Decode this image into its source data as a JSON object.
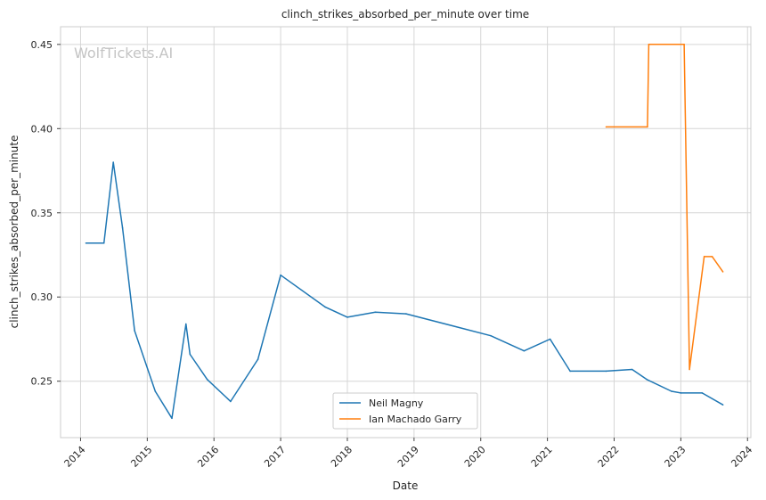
{
  "chart_data": {
    "type": "line",
    "title": "clinch_strikes_absorbed_per_minute over time",
    "xlabel": "Date",
    "ylabel": "clinch_strikes_absorbed_per_minute",
    "watermark": "WolfTickets.AI",
    "xlim": [
      2013.7,
      2024.05
    ],
    "ylim": [
      0.2165,
      0.4605
    ],
    "x_ticks": [
      2014,
      2015,
      2016,
      2017,
      2018,
      2019,
      2020,
      2021,
      2022,
      2023,
      2024
    ],
    "x_tick_labels": [
      "2014",
      "2015",
      "2016",
      "2017",
      "2018",
      "2019",
      "2020",
      "2021",
      "2022",
      "2023",
      "2024"
    ],
    "y_ticks": [
      0.25,
      0.3,
      0.35,
      0.4,
      0.45
    ],
    "y_tick_labels": [
      "0.25",
      "0.30",
      "0.35",
      "0.40",
      "0.45"
    ],
    "grid": true,
    "legend_position": "bottom-center",
    "series": [
      {
        "name": "Neil Magny",
        "color": "#1f77b4",
        "x": [
          2014.08,
          2014.35,
          2014.49,
          2014.63,
          2014.81,
          2015.12,
          2015.37,
          2015.58,
          2015.64,
          2015.9,
          2016.25,
          2016.66,
          2017.0,
          2017.67,
          2018.0,
          2018.42,
          2018.88,
          2020.15,
          2020.65,
          2021.04,
          2021.34,
          2021.88,
          2022.27,
          2022.49,
          2022.86,
          2023.0,
          2023.32,
          2023.63
        ],
        "y": [
          0.332,
          0.332,
          0.38,
          0.341,
          0.28,
          0.244,
          0.228,
          0.284,
          0.266,
          0.251,
          0.238,
          0.263,
          0.313,
          0.294,
          0.288,
          0.291,
          0.29,
          0.277,
          0.268,
          0.275,
          0.256,
          0.256,
          0.257,
          0.251,
          0.244,
          0.243,
          0.243,
          0.236
        ]
      },
      {
        "name": "Ian Machado Garry",
        "color": "#ff7f0e",
        "x": [
          2021.88,
          2022.5,
          2022.52,
          2023.05,
          2023.13,
          2023.35,
          2023.47,
          2023.63
        ],
        "y": [
          0.401,
          0.401,
          0.45,
          0.45,
          0.257,
          0.324,
          0.324,
          0.315
        ]
      }
    ]
  }
}
